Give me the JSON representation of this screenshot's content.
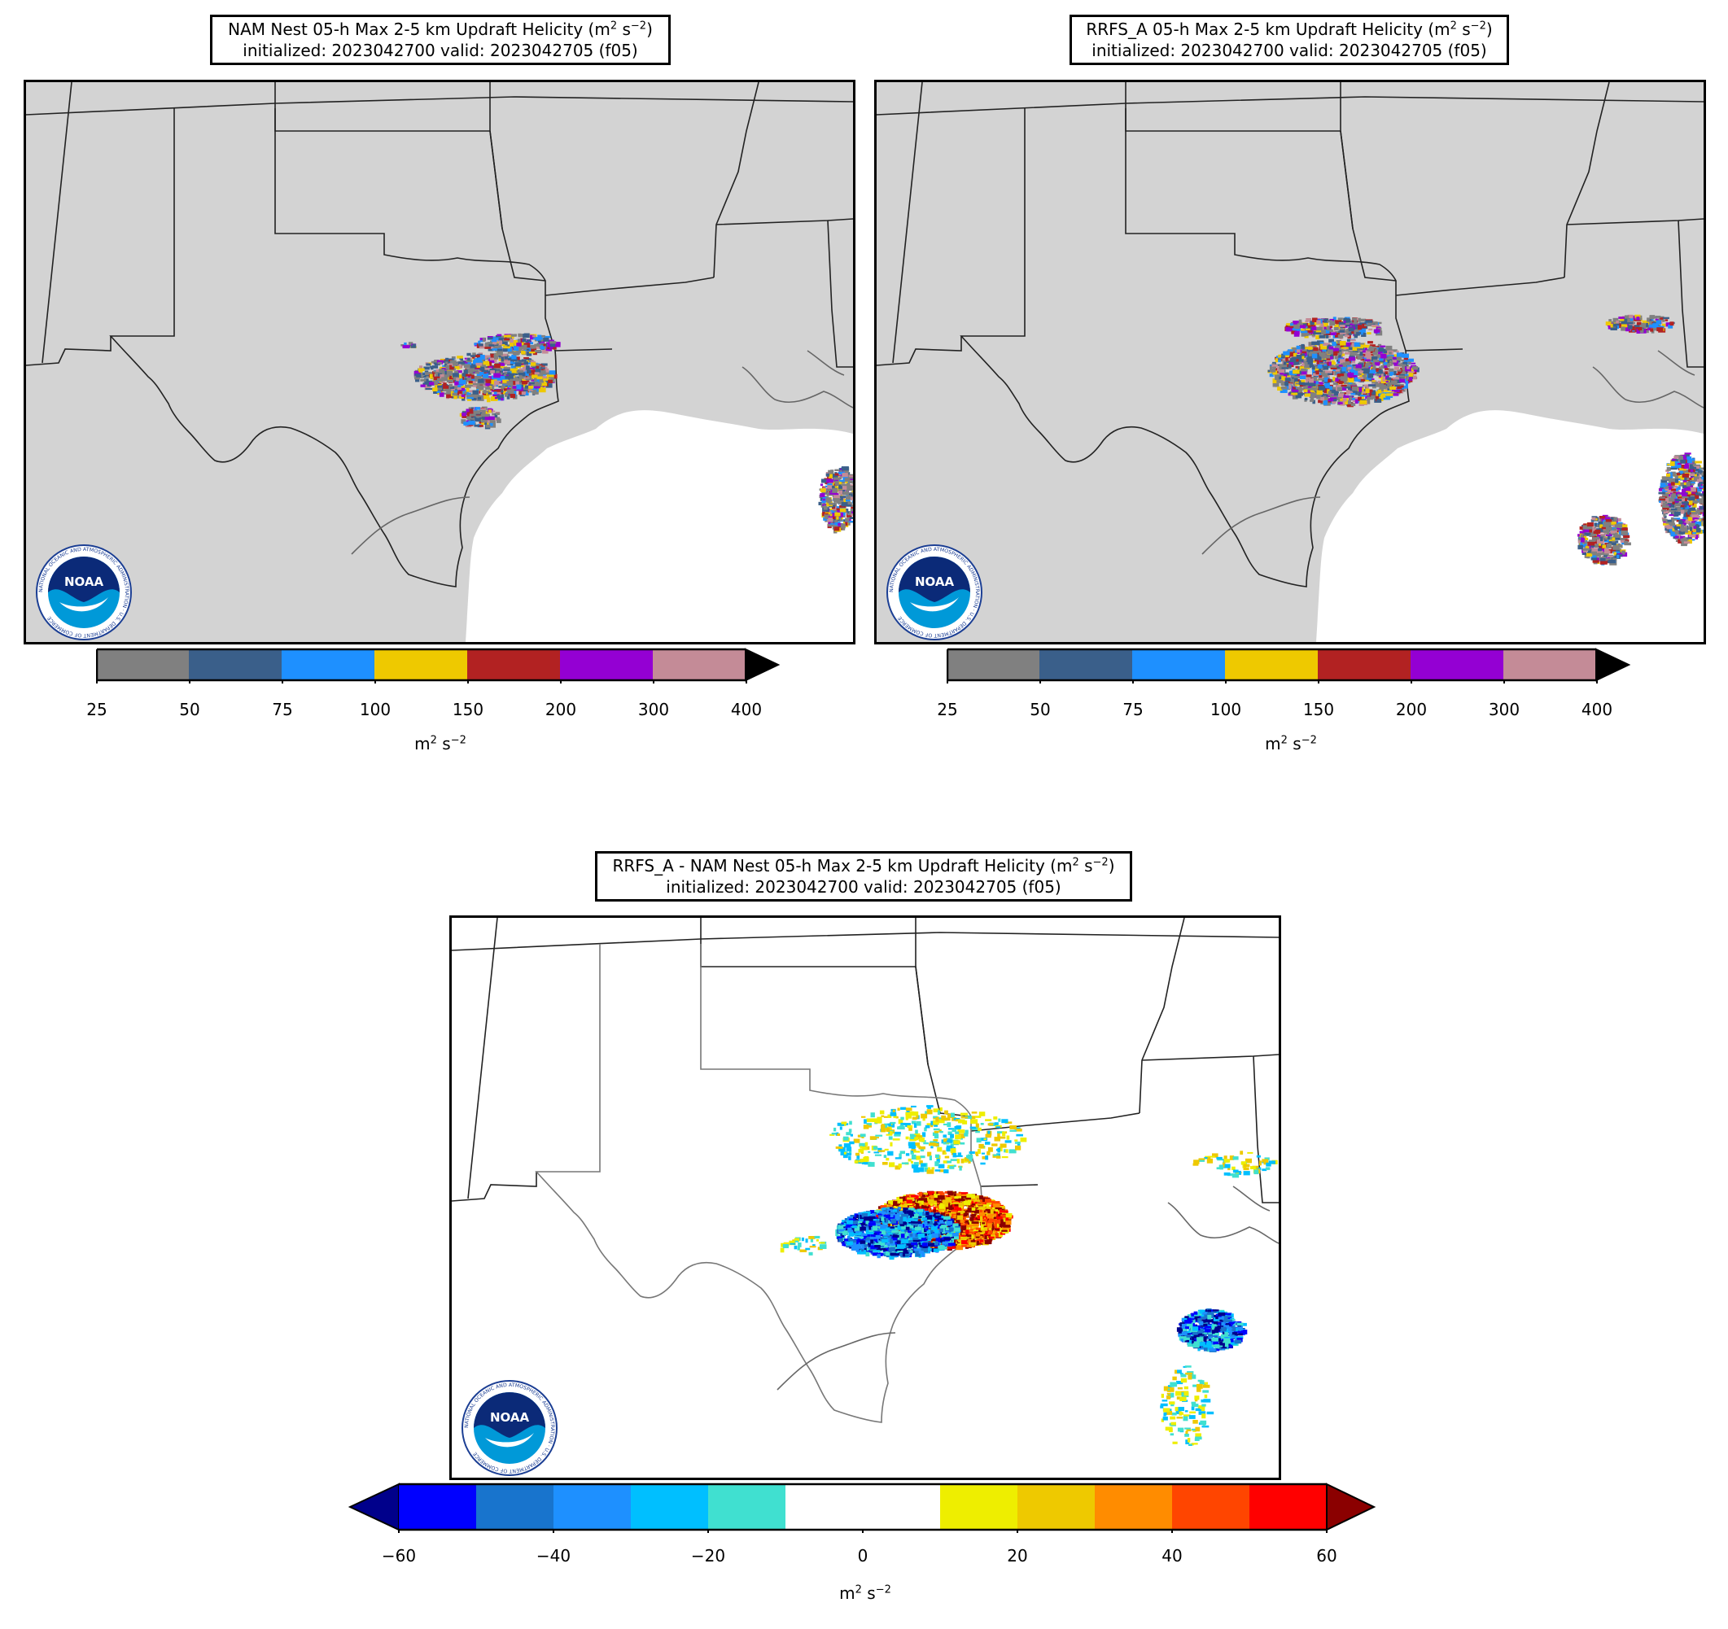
{
  "panels": [
    {
      "id": "nam",
      "title_line1": "NAM Nest 05-h Max 2-5 km Updraft Helicity (m",
      "title_sup1": "2",
      "title_mid": " s",
      "title_sup2": "−2",
      "title_end": ")",
      "title_line2": "initialized: 2023042700 valid: 2023042705 (f05)"
    },
    {
      "id": "rrfs",
      "title_line1": "RRFS_A 05-h Max 2-5 km Updraft Helicity (m",
      "title_sup1": "2",
      "title_mid": " s",
      "title_sup2": "−2",
      "title_end": ")",
      "title_line2": "initialized: 2023042700 valid: 2023042705 (f05)"
    },
    {
      "id": "diff",
      "title_line1": "RRFS_A - NAM Nest 05-h Max 2-5 km Updraft Helicity (m",
      "title_sup1": "2",
      "title_mid": " s",
      "title_sup2": "−2",
      "title_end": ")",
      "title_line2": "initialized: 2023042700 valid: 2023042705 (f05)"
    }
  ],
  "uh_colorbar": {
    "ticks": [
      "25",
      "50",
      "75",
      "100",
      "150",
      "200",
      "300",
      "400"
    ],
    "colors": [
      "#808080",
      "#3a5f8a",
      "#1e90ff",
      "#eec900",
      "#b22222",
      "#9400d3",
      "#c48b97"
    ],
    "extend_color": "#000000",
    "units_base": "m",
    "units_sup1": "2",
    "units_mid": " s",
    "units_sup2": "−2"
  },
  "diff_colorbar": {
    "ticks": [
      "−60",
      "−40",
      "−20",
      "0",
      "20",
      "40",
      "60"
    ],
    "colors": [
      "#0000ff",
      "#1874cd",
      "#1e90ff",
      "#00bfff",
      "#40e0d0",
      "#ffffff",
      "#ffffff",
      "#eeee00",
      "#eec900",
      "#ff8c00",
      "#ff4500",
      "#ff0000"
    ],
    "low_extend_color": "#00008b",
    "high_extend_color": "#8b0000",
    "units_base": "m",
    "units_sup1": "2",
    "units_mid": " s",
    "units_sup2": "−2"
  },
  "logo": {
    "text": "NOAA",
    "ring_text": "NATIONAL OCEANIC AND ATMOSPHERIC ADMINISTRATION · U.S. DEPARTMENT OF COMMERCE"
  },
  "colors": {
    "land": "#d3d3d3",
    "water": "#ffffff",
    "state_border": "#222222",
    "coast": "#666666"
  }
}
